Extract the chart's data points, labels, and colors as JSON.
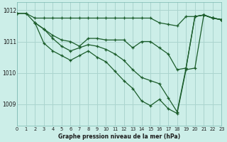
{
  "xlabel": "Graphe pression niveau de la mer (hPa)",
  "bg_color": "#cceee8",
  "grid_color": "#aad4ce",
  "line_color": "#1a5c2a",
  "xlim": [
    0,
    23
  ],
  "ylim": [
    1008.3,
    1012.25
  ],
  "yticks": [
    1009,
    1010,
    1011,
    1012
  ],
  "xticks": [
    0,
    1,
    2,
    3,
    4,
    5,
    6,
    7,
    8,
    9,
    10,
    11,
    12,
    13,
    14,
    15,
    16,
    17,
    18,
    19,
    20,
    21,
    22,
    23
  ],
  "series": [
    {
      "x": [
        0,
        1,
        2,
        3,
        4,
        5,
        6,
        7,
        8,
        9,
        10,
        11,
        12,
        13,
        14,
        15,
        16,
        17,
        18,
        19,
        20,
        21,
        22,
        23
      ],
      "y": [
        1011.9,
        1011.9,
        1011.75,
        1011.75,
        1011.75,
        1011.75,
        1011.75,
        1011.75,
        1011.75,
        1011.75,
        1011.75,
        1011.75,
        1011.75,
        1011.75,
        1011.75,
        1011.75,
        1011.6,
        1011.55,
        1011.5,
        1011.8,
        1011.8,
        1011.85,
        1011.75,
        1011.7
      ]
    },
    {
      "x": [
        0,
        1,
        2,
        3,
        4,
        5,
        6,
        7,
        8,
        9,
        10,
        11,
        12,
        13,
        14,
        15,
        16,
        17,
        18,
        19,
        20,
        21,
        22,
        23
      ],
      "y": [
        1011.9,
        1011.9,
        1011.6,
        1011.4,
        1011.2,
        1011.05,
        1011.0,
        1010.85,
        1011.1,
        1011.1,
        1011.05,
        1011.05,
        1011.05,
        1010.8,
        1011.0,
        1011.0,
        1010.8,
        1010.6,
        1010.1,
        1010.15,
        1011.8,
        1011.85,
        1011.75,
        1011.7
      ]
    },
    {
      "x": [
        2,
        3,
        4,
        5,
        6,
        7,
        8,
        9,
        10,
        11,
        12,
        13,
        14,
        15,
        16,
        17,
        18,
        19,
        20,
        21,
        22,
        23
      ],
      "y": [
        1011.6,
        1011.4,
        1011.1,
        1010.85,
        1010.7,
        1010.8,
        1010.9,
        1010.85,
        1010.75,
        1010.6,
        1010.4,
        1010.1,
        1009.85,
        1009.75,
        1009.65,
        1009.2,
        1008.75,
        1010.15,
        1011.8,
        1011.85,
        1011.75,
        1011.7
      ]
    },
    {
      "x": [
        2,
        3,
        4,
        5,
        6,
        7,
        8,
        9,
        10,
        11,
        12,
        13,
        14,
        15,
        16,
        17,
        18,
        19,
        20,
        21,
        22,
        23
      ],
      "y": [
        1011.6,
        1010.95,
        1010.7,
        1010.55,
        1010.4,
        1010.55,
        1010.7,
        1010.5,
        1010.35,
        1010.05,
        1009.75,
        1009.5,
        1009.1,
        1008.95,
        1009.15,
        1008.85,
        1008.7,
        1010.1,
        1010.15,
        1011.85,
        1011.75,
        1011.7
      ]
    }
  ]
}
